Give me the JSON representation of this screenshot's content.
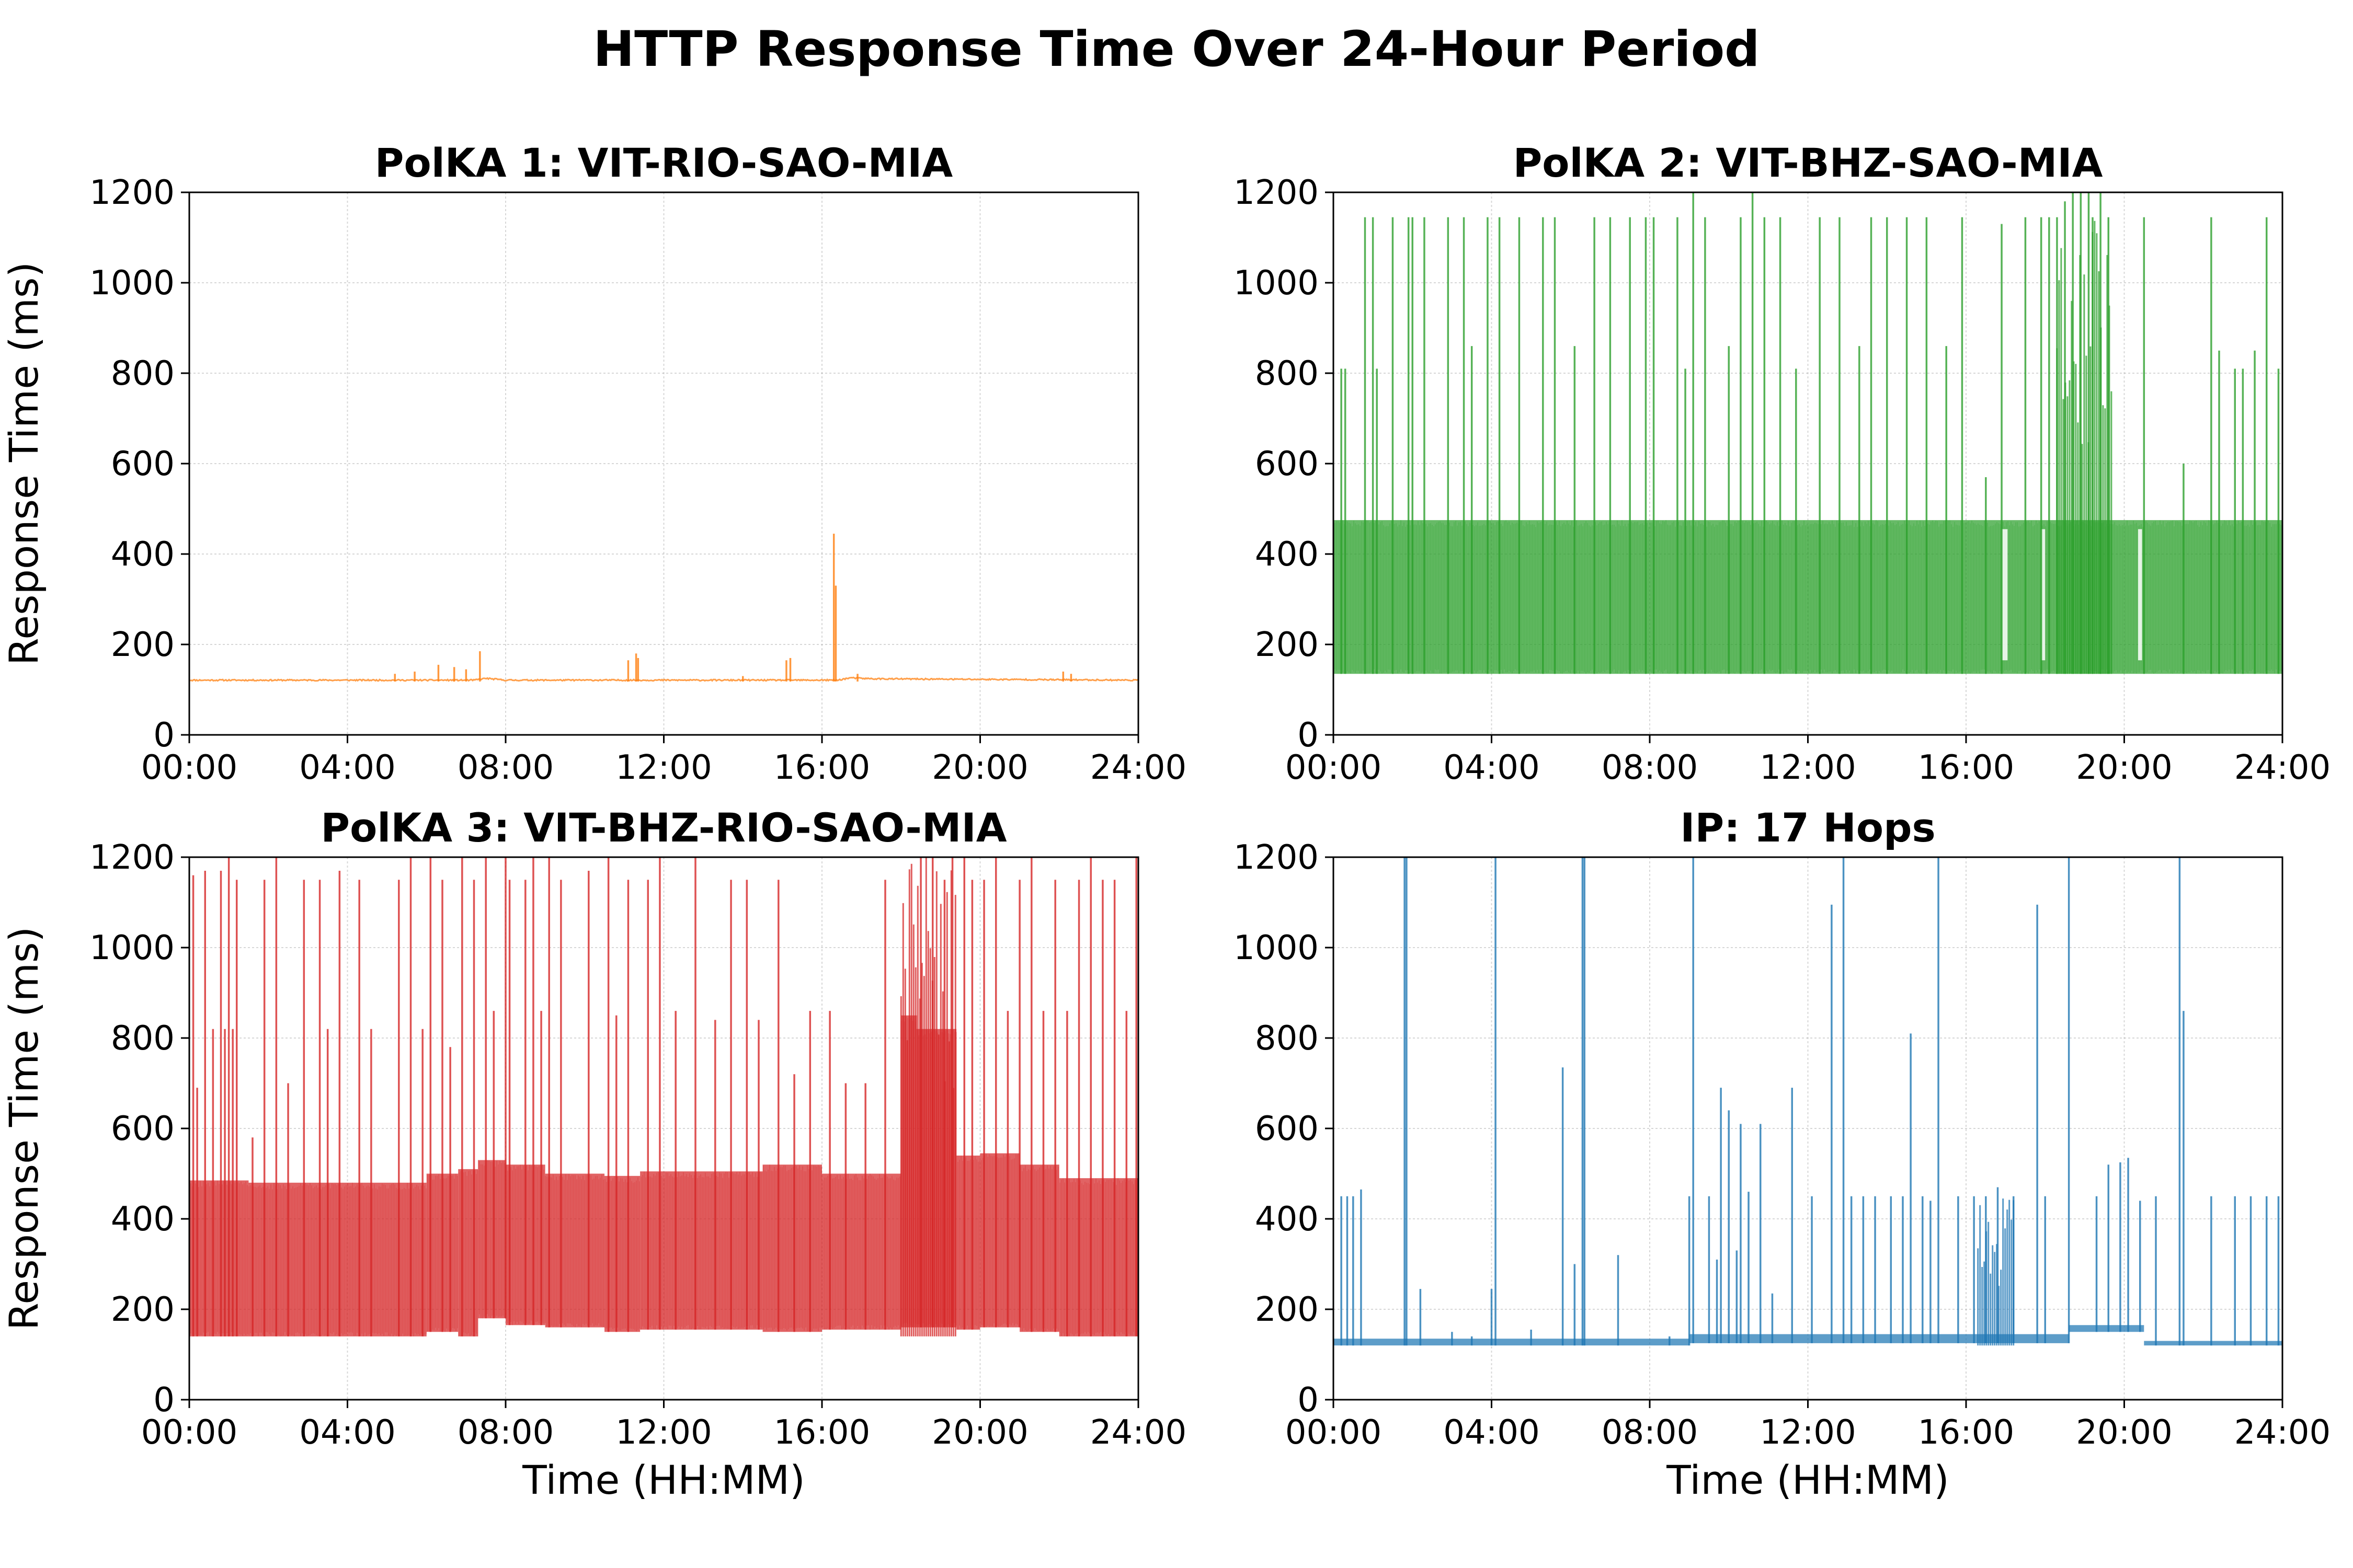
{
  "figure": {
    "title": "HTTP Response Time Over 24-Hour Period"
  },
  "chart_data": [
    {
      "type": "line",
      "title": "PolKA 1: VIT-RIO-SAO-MIA",
      "xlabel": "",
      "ylabel": "Response Time (ms)",
      "xlim": [
        "00:00",
        "24:00"
      ],
      "ylim": [
        0,
        1200
      ],
      "xticks": [
        "00:00",
        "04:00",
        "08:00",
        "12:00",
        "16:00",
        "20:00",
        "24:00"
      ],
      "yticks": [
        0,
        200,
        400,
        600,
        800,
        1000,
        1200
      ],
      "grid": true,
      "color": "#ff7f0e",
      "band": {
        "low": 118,
        "high": 125
      },
      "baseline": [
        [
          0,
          121
        ],
        [
          7.2,
          121
        ],
        [
          7.5,
          125
        ],
        [
          8.0,
          121
        ],
        [
          16.4,
          121
        ],
        [
          16.7,
          126
        ],
        [
          17.3,
          124
        ],
        [
          24,
          121
        ]
      ],
      "spikes": [
        [
          5.2,
          135
        ],
        [
          5.7,
          140
        ],
        [
          6.3,
          155
        ],
        [
          6.7,
          150
        ],
        [
          7.0,
          145
        ],
        [
          7.35,
          185
        ],
        [
          11.1,
          165
        ],
        [
          11.3,
          180
        ],
        [
          11.35,
          170
        ],
        [
          14.0,
          130
        ],
        [
          15.1,
          165
        ],
        [
          15.2,
          170
        ],
        [
          16.3,
          445
        ],
        [
          16.35,
          330
        ],
        [
          16.9,
          135
        ],
        [
          22.1,
          140
        ],
        [
          22.3,
          135
        ]
      ]
    },
    {
      "type": "line",
      "title": "PolKA 2: VIT-BHZ-SAO-MIA",
      "xlabel": "",
      "ylabel": "",
      "xlim": [
        "00:00",
        "24:00"
      ],
      "ylim": [
        0,
        1200
      ],
      "xticks": [
        "00:00",
        "04:00",
        "08:00",
        "12:00",
        "16:00",
        "20:00",
        "24:00"
      ],
      "yticks": [
        0,
        200,
        400,
        600,
        800,
        1000,
        1200
      ],
      "grid": true,
      "color": "#2ca02c",
      "band": {
        "low": 135,
        "high": 475
      },
      "gaps": [
        [
          16.9,
          17.05
        ],
        [
          17.9,
          18.0
        ],
        [
          20.35,
          20.45
        ]
      ],
      "spikes": [
        [
          0.2,
          810
        ],
        [
          0.3,
          810
        ],
        [
          0.8,
          1145
        ],
        [
          1.0,
          1145
        ],
        [
          1.1,
          810
        ],
        [
          1.5,
          1145
        ],
        [
          1.9,
          1145
        ],
        [
          2.0,
          1145
        ],
        [
          2.3,
          1145
        ],
        [
          2.9,
          1145
        ],
        [
          3.3,
          1145
        ],
        [
          3.5,
          860
        ],
        [
          3.9,
          1145
        ],
        [
          4.2,
          1145
        ],
        [
          4.7,
          1145
        ],
        [
          5.3,
          1145
        ],
        [
          5.6,
          1145
        ],
        [
          6.1,
          860
        ],
        [
          6.6,
          1145
        ],
        [
          7.0,
          1145
        ],
        [
          7.5,
          1145
        ],
        [
          7.9,
          1145
        ],
        [
          8.1,
          1145
        ],
        [
          8.7,
          1145
        ],
        [
          8.9,
          810
        ],
        [
          9.1,
          1200
        ],
        [
          9.4,
          1145
        ],
        [
          10.0,
          860
        ],
        [
          10.3,
          1145
        ],
        [
          10.6,
          1200
        ],
        [
          10.9,
          1145
        ],
        [
          11.3,
          1145
        ],
        [
          11.7,
          810
        ],
        [
          12.3,
          1145
        ],
        [
          12.8,
          1145
        ],
        [
          13.3,
          860
        ],
        [
          13.6,
          1145
        ],
        [
          14.0,
          1145
        ],
        [
          14.5,
          1145
        ],
        [
          15.0,
          1145
        ],
        [
          15.5,
          860
        ],
        [
          15.9,
          1145
        ],
        [
          16.5,
          570
        ],
        [
          16.9,
          1130
        ],
        [
          17.5,
          1145
        ],
        [
          17.9,
          1145
        ],
        [
          18.1,
          1145
        ],
        [
          18.3,
          1145
        ],
        [
          18.5,
          1180
        ],
        [
          18.7,
          1200
        ],
        [
          18.9,
          1200
        ],
        [
          19.1,
          1200
        ],
        [
          19.2,
          1145
        ],
        [
          19.4,
          1200
        ],
        [
          19.6,
          1145
        ],
        [
          20.5,
          1145
        ],
        [
          21.5,
          600
        ],
        [
          22.2,
          1145
        ],
        [
          22.4,
          850
        ],
        [
          22.8,
          810
        ],
        [
          23.0,
          810
        ],
        [
          23.3,
          850
        ],
        [
          23.6,
          1145
        ],
        [
          23.9,
          810
        ]
      ],
      "dense_region": [
        18.3,
        19.7,
        1150
      ]
    },
    {
      "type": "line",
      "title": "PolKA 3: VIT-BHZ-RIO-SAO-MIA",
      "xlabel": "Time (HH:MM)",
      "ylabel": "Response Time (ms)",
      "xlim": [
        "00:00",
        "24:00"
      ],
      "ylim": [
        0,
        1200
      ],
      "xticks": [
        "00:00",
        "04:00",
        "08:00",
        "12:00",
        "16:00",
        "20:00",
        "24:00"
      ],
      "yticks": [
        0,
        200,
        400,
        600,
        800,
        1000,
        1200
      ],
      "grid": true,
      "color": "#d62728",
      "band_segments": [
        [
          0,
          1.5,
          140,
          485
        ],
        [
          1.5,
          6.0,
          140,
          480
        ],
        [
          6.0,
          6.8,
          150,
          500
        ],
        [
          6.8,
          7.3,
          140,
          510
        ],
        [
          7.3,
          8.0,
          180,
          530
        ],
        [
          8.0,
          9.0,
          165,
          520
        ],
        [
          9.0,
          10.5,
          160,
          500
        ],
        [
          10.5,
          11.4,
          150,
          495
        ],
        [
          11.4,
          14.5,
          155,
          505
        ],
        [
          14.5,
          16.0,
          150,
          520
        ],
        [
          16.0,
          18.0,
          155,
          500
        ],
        [
          18.0,
          18.4,
          160,
          850
        ],
        [
          18.4,
          19.4,
          160,
          820
        ],
        [
          19.4,
          20.0,
          155,
          540
        ],
        [
          20.0,
          21.0,
          160,
          545
        ],
        [
          21.0,
          22.0,
          150,
          520
        ],
        [
          22.0,
          24.0,
          140,
          490
        ]
      ],
      "spikes": [
        [
          0.1,
          1160
        ],
        [
          0.2,
          690
        ],
        [
          0.4,
          1170
        ],
        [
          0.6,
          820
        ],
        [
          0.8,
          1170
        ],
        [
          0.9,
          820
        ],
        [
          1.0,
          1200
        ],
        [
          1.1,
          820
        ],
        [
          1.2,
          1150
        ],
        [
          1.6,
          580
        ],
        [
          1.9,
          1150
        ],
        [
          2.2,
          1200
        ],
        [
          2.5,
          700
        ],
        [
          2.9,
          1150
        ],
        [
          3.3,
          1150
        ],
        [
          3.5,
          820
        ],
        [
          3.8,
          1170
        ],
        [
          4.3,
          1150
        ],
        [
          4.6,
          820
        ],
        [
          5.3,
          1150
        ],
        [
          5.6,
          1200
        ],
        [
          5.9,
          820
        ],
        [
          6.1,
          1200
        ],
        [
          6.4,
          1150
        ],
        [
          6.6,
          780
        ],
        [
          6.9,
          1200
        ],
        [
          7.2,
          1150
        ],
        [
          7.5,
          1200
        ],
        [
          7.7,
          860
        ],
        [
          8.0,
          1200
        ],
        [
          8.1,
          1150
        ],
        [
          8.5,
          1150
        ],
        [
          8.7,
          1200
        ],
        [
          8.9,
          860
        ],
        [
          9.1,
          1200
        ],
        [
          9.4,
          1150
        ],
        [
          10.1,
          1170
        ],
        [
          10.6,
          1200
        ],
        [
          10.8,
          850
        ],
        [
          11.1,
          1150
        ],
        [
          11.6,
          1150
        ],
        [
          11.9,
          1200
        ],
        [
          12.3,
          860
        ],
        [
          12.8,
          1200
        ],
        [
          13.3,
          840
        ],
        [
          13.7,
          1150
        ],
        [
          14.1,
          1150
        ],
        [
          14.4,
          840
        ],
        [
          14.9,
          1150
        ],
        [
          15.3,
          720
        ],
        [
          15.7,
          860
        ],
        [
          16.2,
          860
        ],
        [
          16.6,
          700
        ],
        [
          17.1,
          700
        ],
        [
          17.6,
          1150
        ],
        [
          18.5,
          1200
        ],
        [
          18.8,
          1200
        ],
        [
          19.1,
          1150
        ],
        [
          19.3,
          1200
        ],
        [
          19.6,
          1200
        ],
        [
          19.8,
          1150
        ],
        [
          20.1,
          1150
        ],
        [
          20.4,
          1200
        ],
        [
          20.7,
          860
        ],
        [
          21.0,
          1150
        ],
        [
          21.3,
          1200
        ],
        [
          21.6,
          860
        ],
        [
          21.9,
          1150
        ],
        [
          22.2,
          860
        ],
        [
          22.5,
          1150
        ],
        [
          22.8,
          1200
        ],
        [
          23.1,
          1150
        ],
        [
          23.4,
          1150
        ],
        [
          23.7,
          860
        ],
        [
          23.95,
          1200
        ]
      ],
      "dense_region": [
        18.0,
        19.4,
        1200
      ]
    },
    {
      "type": "line",
      "title": "IP: 17 Hops",
      "xlabel": "Time (HH:MM)",
      "ylabel": "",
      "xlim": [
        "00:00",
        "24:00"
      ],
      "ylim": [
        0,
        1200
      ],
      "xticks": [
        "00:00",
        "04:00",
        "08:00",
        "12:00",
        "16:00",
        "20:00",
        "24:00"
      ],
      "yticks": [
        0,
        200,
        400,
        600,
        800,
        1000,
        1200
      ],
      "grid": true,
      "color": "#1f77b4",
      "band_segments": [
        [
          0,
          9.0,
          120,
          135
        ],
        [
          9.0,
          18.6,
          125,
          145
        ],
        [
          18.6,
          20.5,
          150,
          165
        ],
        [
          20.5,
          24,
          120,
          130
        ]
      ],
      "spikes": [
        [
          0.2,
          450
        ],
        [
          0.35,
          450
        ],
        [
          0.5,
          450
        ],
        [
          0.7,
          465
        ],
        [
          1.8,
          1200
        ],
        [
          1.85,
          1200
        ],
        [
          2.2,
          245
        ],
        [
          3.0,
          150
        ],
        [
          3.5,
          140
        ],
        [
          4.0,
          245
        ],
        [
          4.1,
          1200
        ],
        [
          5.0,
          155
        ],
        [
          5.8,
          735
        ],
        [
          6.1,
          300
        ],
        [
          6.3,
          1200
        ],
        [
          6.35,
          1200
        ],
        [
          7.2,
          320
        ],
        [
          8.5,
          140
        ],
        [
          9.0,
          450
        ],
        [
          9.1,
          1200
        ],
        [
          9.5,
          450
        ],
        [
          9.7,
          310
        ],
        [
          9.8,
          690
        ],
        [
          10.0,
          640
        ],
        [
          10.2,
          330
        ],
        [
          10.3,
          610
        ],
        [
          10.5,
          460
        ],
        [
          10.8,
          610
        ],
        [
          11.1,
          235
        ],
        [
          11.6,
          690
        ],
        [
          12.1,
          450
        ],
        [
          12.6,
          1095
        ],
        [
          12.9,
          1200
        ],
        [
          13.1,
          450
        ],
        [
          13.4,
          450
        ],
        [
          13.7,
          450
        ],
        [
          14.1,
          450
        ],
        [
          14.4,
          450
        ],
        [
          14.6,
          810
        ],
        [
          14.9,
          450
        ],
        [
          15.1,
          440
        ],
        [
          15.3,
          1200
        ],
        [
          15.8,
          450
        ],
        [
          16.2,
          450
        ],
        [
          16.5,
          450
        ],
        [
          16.8,
          470
        ],
        [
          17.2,
          450
        ],
        [
          17.8,
          1095
        ],
        [
          18.0,
          450
        ],
        [
          18.6,
          1200
        ],
        [
          19.3,
          450
        ],
        [
          19.6,
          520
        ],
        [
          19.9,
          525
        ],
        [
          20.1,
          535
        ],
        [
          20.4,
          440
        ],
        [
          20.8,
          450
        ],
        [
          21.4,
          1200
        ],
        [
          21.5,
          860
        ],
        [
          22.2,
          450
        ],
        [
          22.8,
          450
        ],
        [
          23.2,
          450
        ],
        [
          23.6,
          450
        ],
        [
          23.9,
          450
        ]
      ],
      "dense_region": [
        16.3,
        17.2,
        450
      ]
    }
  ]
}
